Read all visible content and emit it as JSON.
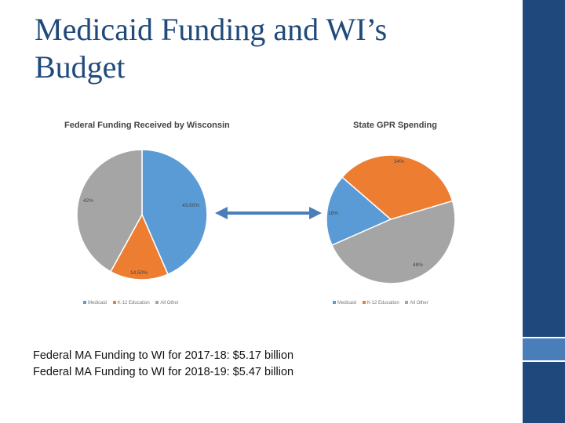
{
  "slide": {
    "title_line1": "Medicaid Funding and WI’s",
    "title_line2": "Budget"
  },
  "colors": {
    "medicaid": "#5b9bd5",
    "k12": "#ed7d31",
    "other": "#a5a5a5",
    "arrow": "#4a7ebb",
    "sidebar": "#1f497d"
  },
  "chart_data": [
    {
      "type": "pie",
      "title": "Federal Funding Received by Wisconsin",
      "categories": [
        "Medicaid",
        "K-12 Education",
        "All Other"
      ],
      "values": [
        43.5,
        14.5,
        42
      ],
      "labels": [
        "43.50%",
        "14.50%",
        "42%"
      ],
      "legend_position": "bottom"
    },
    {
      "type": "pie",
      "title": "State GPR Spending",
      "categories": [
        "Medicaid",
        "K-12 Education",
        "All Other"
      ],
      "values": [
        18,
        34,
        48
      ],
      "labels": [
        "18%",
        "34%",
        "48%"
      ],
      "legend_position": "bottom"
    }
  ],
  "footnotes": [
    "Federal MA Funding to WI for 2017-18: $5.17 billion",
    "Federal MA Funding to WI for 2018-19: $5.47 billion"
  ]
}
